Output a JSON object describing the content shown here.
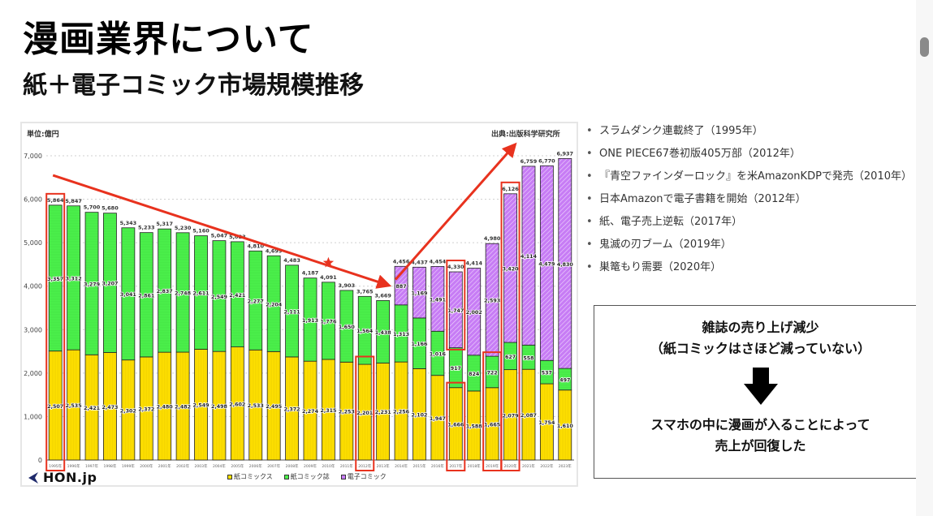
{
  "slide": {
    "title": "漫画業界について",
    "subtitle": "紙＋電子コミック市場規模推移"
  },
  "chart_header": {
    "unit": "単位:億円",
    "source": "出典:出版科学研究所",
    "logo": "HON.jp"
  },
  "chart_data": {
    "type": "bar",
    "stacked": true,
    "title": "紙＋電子コミック市場規模推移",
    "xlabel": "",
    "ylabel": "単位:億円",
    "ylim": [
      0,
      7000
    ],
    "yticks": [
      0,
      1000,
      2000,
      3000,
      4000,
      5000,
      6000,
      7000
    ],
    "ytick_labels": [
      "0",
      "1,000",
      "2,000",
      "3,000",
      "4,000",
      "5,000",
      "6,000",
      "7,000"
    ],
    "grid": true,
    "legend_position": "bottom-center",
    "categories": [
      "1995年",
      "1996年",
      "1997年",
      "1998年",
      "1999年",
      "2000年",
      "2001年",
      "2002年",
      "2003年",
      "2004年",
      "2005年",
      "2006年",
      "2007年",
      "2008年",
      "2009年",
      "2010年",
      "2011年",
      "2012年",
      "2013年",
      "2014年",
      "2015年",
      "2016年",
      "2017年",
      "2018年",
      "2019年",
      "2020年",
      "2021年",
      "2022年",
      "2023年"
    ],
    "series": [
      {
        "name": "紙コミックス",
        "color": "#ffe100",
        "values": [
          2507,
          2535,
          2421,
          2473,
          2302,
          2372,
          2480,
          2482,
          2549,
          2498,
          2602,
          2533,
          2495,
          2372,
          2274,
          2315,
          2253,
          2201,
          2231,
          2256,
          2102,
          1947,
          1666,
          1588,
          1665,
          2079,
          2087,
          1754,
          1610
        ]
      },
      {
        "name": "紙コミック誌",
        "color": "#4cf04c",
        "values": [
          3357,
          3312,
          3279,
          3207,
          3041,
          2861,
          2837,
          2748,
          2611,
          2549,
          2421,
          2277,
          2204,
          2111,
          1913,
          1776,
          1650,
          1564,
          1438,
          1313,
          1166,
          1016,
          917,
          824,
          722,
          627,
          558,
          537,
          497
        ]
      },
      {
        "name": "電子コミック",
        "color": "#c77cf5",
        "values": [
          0,
          0,
          0,
          0,
          0,
          0,
          0,
          0,
          0,
          0,
          0,
          0,
          0,
          0,
          0,
          0,
          0,
          0,
          0,
          887,
          1169,
          1491,
          1747,
          2002,
          2593,
          3420,
          4114,
          4479,
          4830
        ]
      }
    ],
    "totals": [
      5864,
      5847,
      5700,
      5680,
      5343,
      5233,
      5317,
      5230,
      5160,
      5047,
      5023,
      4810,
      4699,
      4483,
      4187,
      4091,
      3903,
      3765,
      3669,
      4456,
      4437,
      4454,
      4330,
      4414,
      4980,
      6126,
      6759,
      6770,
      6937
    ],
    "annotations": {
      "highlighted_years": [
        "1995年",
        "2012年",
        "2017年",
        "2019年",
        "2020年"
      ],
      "star_year": "2010年",
      "trend_arrows": [
        "down 1995→2013",
        "up 2014→2023"
      ]
    }
  },
  "bullets": [
    "スラムダンク連載終了（1995年）",
    "ONE PIECE67巻初版405万部（2012年）",
    "『青空ファインダーロック』を米AmazonKDPで発売（2010年）",
    "日本Amazonで電子書籍を開始（2012年）",
    "紙、電子売上逆転（2017年）",
    "鬼滅の刃ブーム（2019年）",
    "巣篭もり需要（2020年）"
  ],
  "bullet_marker": "•",
  "note": {
    "line1": "雑誌の売り上げ減少",
    "line2": "（紙コミックはさほど減っていない）",
    "arrow_icon": "down-arrow",
    "line3": "スマホの中に漫画が入ることによって",
    "line4": "売上が回復した"
  }
}
